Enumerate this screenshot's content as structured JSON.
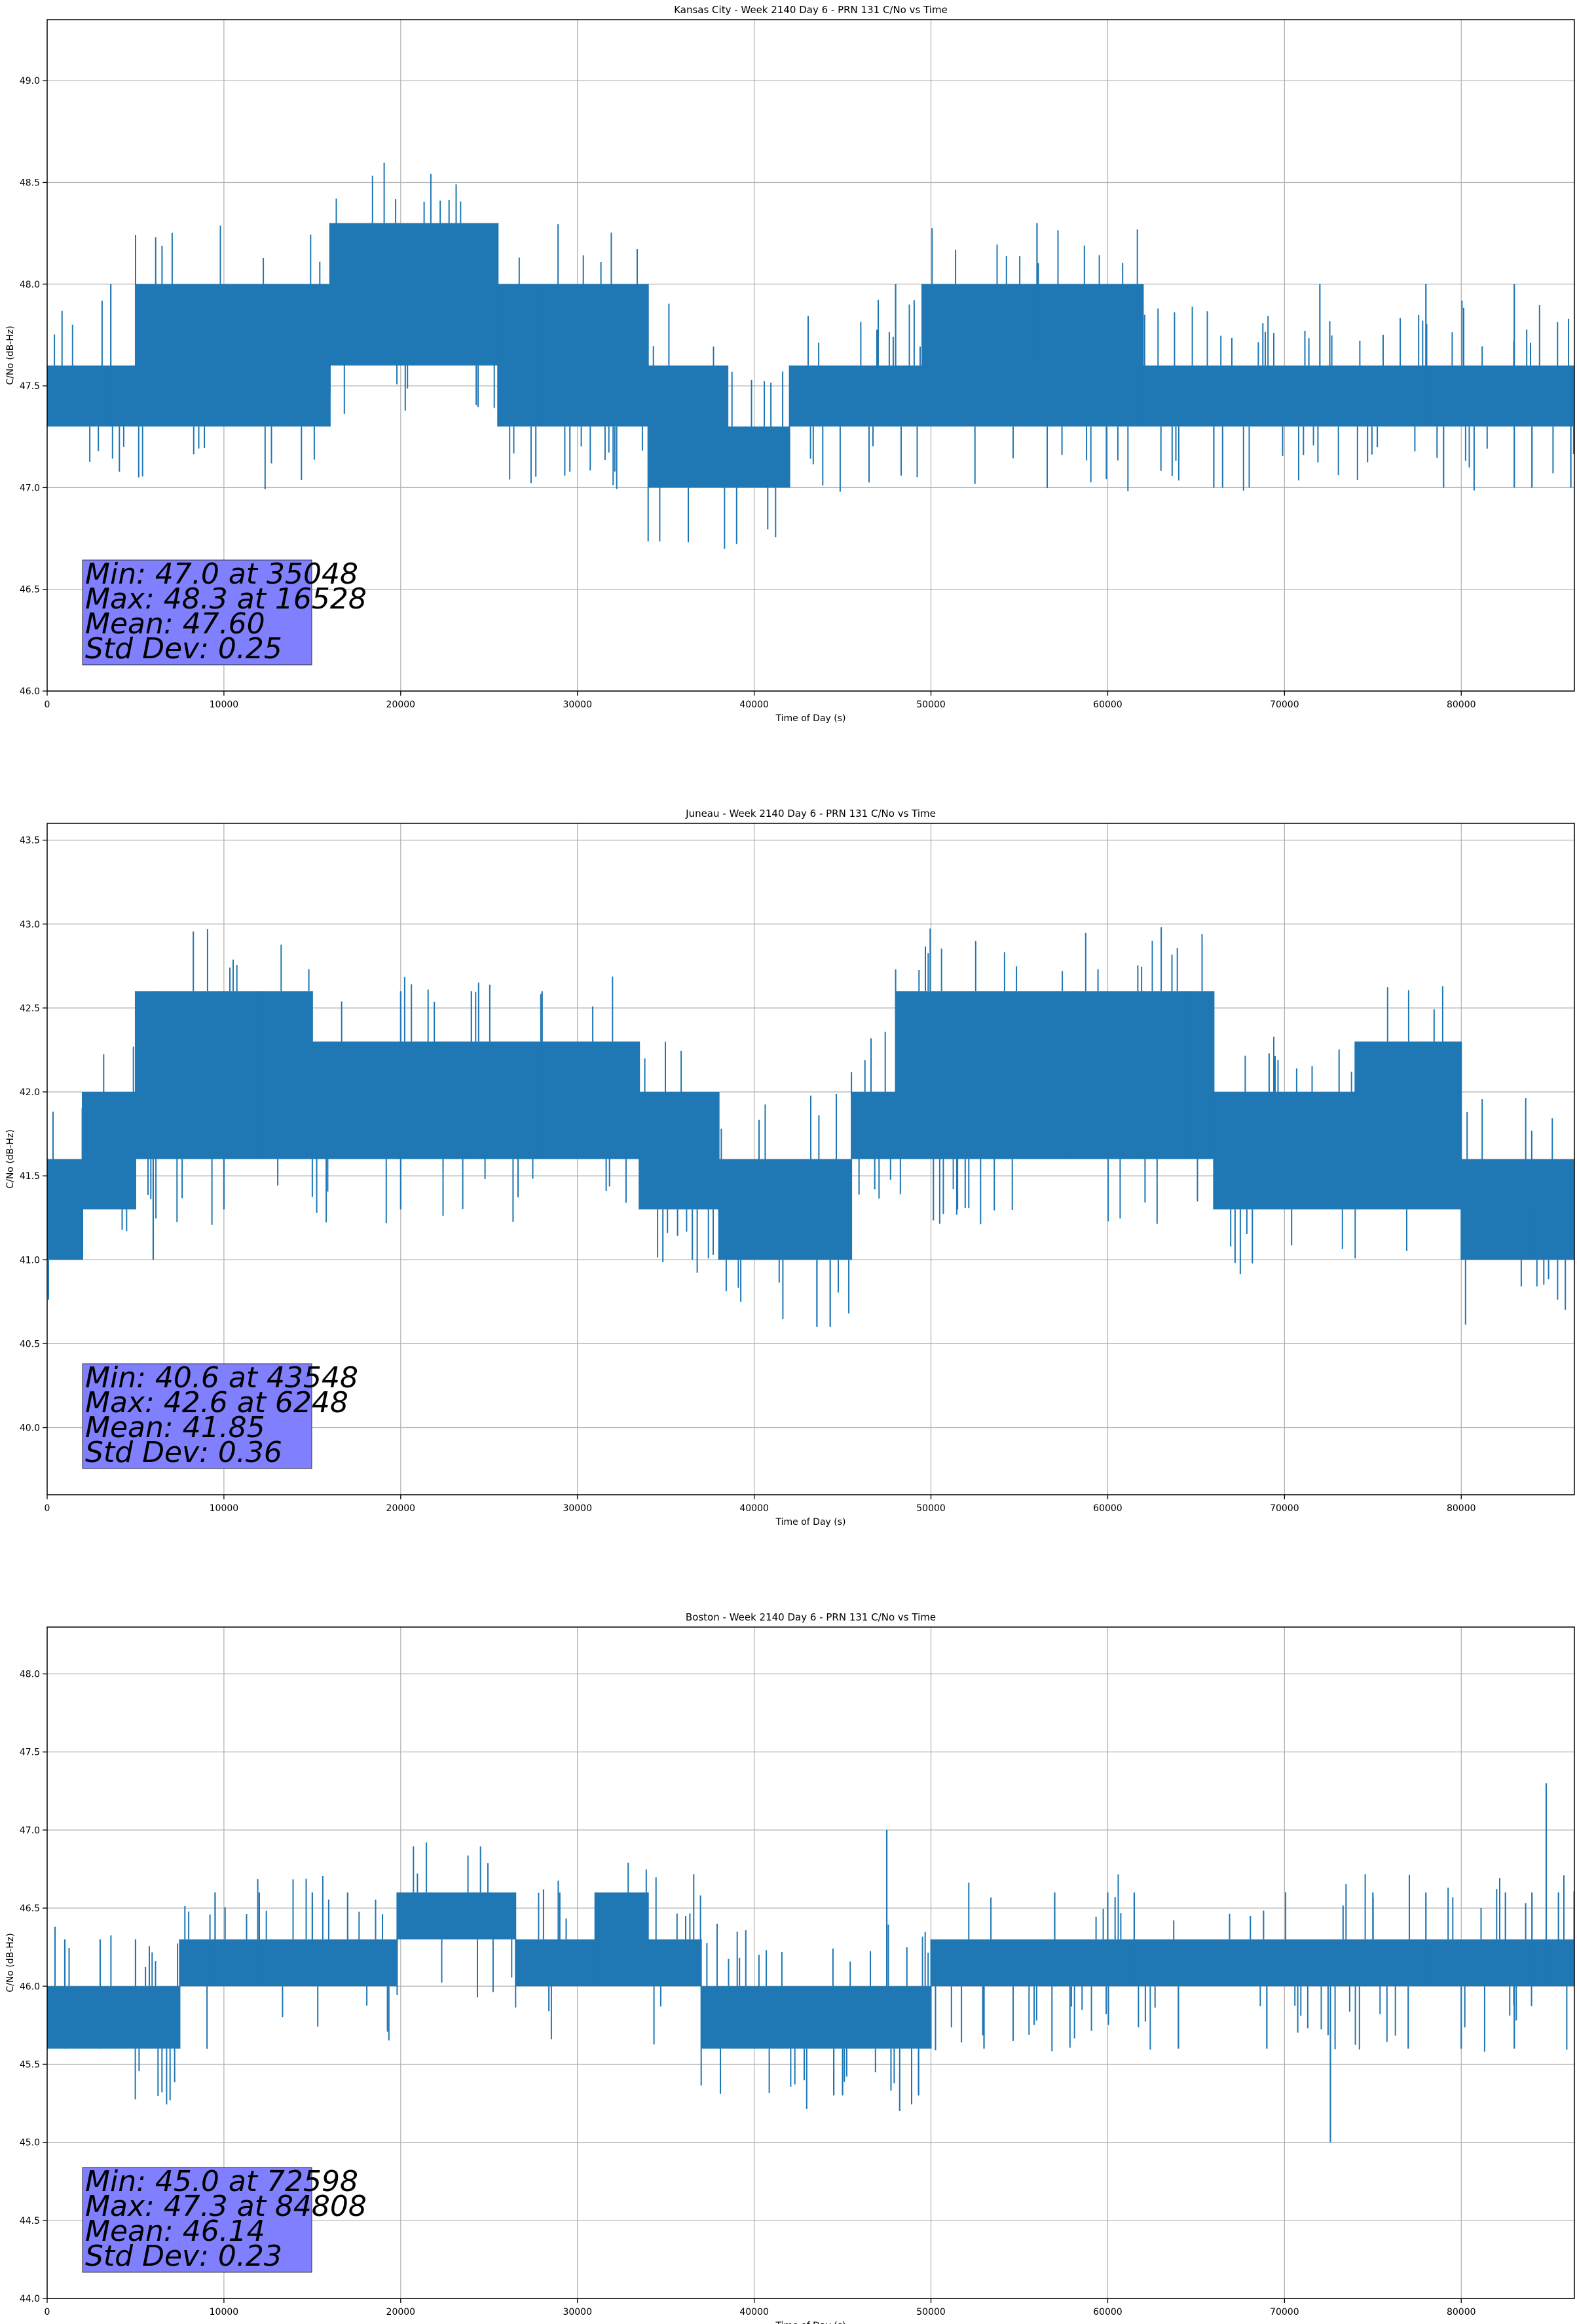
{
  "chart_data": [
    {
      "type": "line",
      "title": "Kansas City - Week 2140 Day 6 - PRN 131 C/No vs Time",
      "xlabel": "Time of Day (s)",
      "ylabel": "C/No (dB-Hz)",
      "xlim": [
        0,
        86400
      ],
      "ylim": [
        46.0,
        49.3
      ],
      "xticks": [
        0,
        10000,
        20000,
        30000,
        40000,
        50000,
        60000,
        70000,
        80000
      ],
      "xtick_labels": [
        "0",
        "10000",
        "20000",
        "30000",
        "40000",
        "50000",
        "60000",
        "70000",
        "80000"
      ],
      "yticks": [
        46.0,
        46.5,
        47.0,
        47.5,
        48.0,
        48.5,
        49.0
      ],
      "ytick_labels": [
        "46.0",
        "46.5",
        "47.0",
        "47.5",
        "48.0",
        "48.5",
        "49.0"
      ],
      "grid": true,
      "line_color": "#1f77b4",
      "series": [
        {
          "segments": [
            {
              "x": [
                0,
                5000
              ],
              "low": 47.3,
              "high": 47.6
            },
            {
              "x": [
                5000,
                16000
              ],
              "low": 47.3,
              "high": 48.0
            },
            {
              "x": [
                16000,
                25500
              ],
              "low": 47.6,
              "high": 48.3
            },
            {
              "x": [
                25500,
                34000
              ],
              "low": 47.3,
              "high": 48.0
            },
            {
              "x": [
                34000,
                38500
              ],
              "low": 47.0,
              "high": 47.6
            },
            {
              "x": [
                38500,
                42000
              ],
              "low": 47.0,
              "high": 47.3
            },
            {
              "x": [
                42000,
                49500
              ],
              "low": 47.3,
              "high": 47.6
            },
            {
              "x": [
                49500,
                62000
              ],
              "low": 47.3,
              "high": 48.0
            },
            {
              "x": [
                62000,
                86400
              ],
              "low": 47.3,
              "high": 47.6
            }
          ],
          "excursions": [
            {
              "x": [
                3600,
                9000,
                14000,
                28000,
                48000,
                56000,
                72000,
                78000,
                83000
              ],
              "high": [
                48.0,
                48.0,
                48.0,
                48.0,
                48.0,
                48.3,
                48.0,
                48.0,
                48.0
              ],
              "low": [
                47.3,
                47.3,
                47.3,
                47.3,
                47.3,
                47.6,
                47.3,
                47.3,
                47.0
              ]
            },
            {
              "x": [
                35048,
                39500,
                41000,
                66000,
                66500,
                79000,
                84000,
                86200
              ],
              "high": [
                47.6,
                47.3,
                47.3,
                47.3,
                47.3,
                47.3,
                47.3,
                47.6
              ],
              "low": [
                47.0,
                47.0,
                47.0,
                47.0,
                47.0,
                47.0,
                47.0,
                47.0
              ]
            }
          ]
        }
      ],
      "stats": {
        "min": "Min: 47.0 at 35048",
        "max": "Max: 48.3 at 16528",
        "mean": "Mean: 47.60",
        "std": "Std Dev: 0.25"
      },
      "stats_box_color": "#8080ff"
    },
    {
      "type": "line",
      "title": "Juneau - Week 2140 Day 6 - PRN 131 C/No vs Time",
      "xlabel": "Time of Day (s)",
      "ylabel": "C/No (dB-Hz)",
      "xlim": [
        0,
        86400
      ],
      "ylim": [
        39.6,
        43.6
      ],
      "xticks": [
        0,
        10000,
        20000,
        30000,
        40000,
        50000,
        60000,
        70000,
        80000
      ],
      "xtick_labels": [
        "0",
        "10000",
        "20000",
        "30000",
        "40000",
        "50000",
        "60000",
        "70000",
        "80000"
      ],
      "yticks": [
        40.0,
        40.5,
        41.0,
        41.5,
        42.0,
        42.5,
        43.0,
        43.5
      ],
      "ytick_labels": [
        "40.0",
        "40.5",
        "41.0",
        "41.5",
        "42.0",
        "42.5",
        "43.0",
        "43.5"
      ],
      "grid": true,
      "line_color": "#1f77b4",
      "series": [
        {
          "segments": [
            {
              "x": [
                0,
                2000
              ],
              "low": 41.0,
              "high": 41.6
            },
            {
              "x": [
                2000,
                5000
              ],
              "low": 41.3,
              "high": 42.0
            },
            {
              "x": [
                5000,
                15000
              ],
              "low": 41.6,
              "high": 42.6
            },
            {
              "x": [
                15000,
                30000
              ],
              "low": 41.6,
              "high": 42.3
            },
            {
              "x": [
                30000,
                33500
              ],
              "low": 41.6,
              "high": 42.3
            },
            {
              "x": [
                33500,
                38000
              ],
              "low": 41.3,
              "high": 42.0
            },
            {
              "x": [
                38000,
                45500
              ],
              "low": 41.0,
              "high": 41.6
            },
            {
              "x": [
                45500,
                48000
              ],
              "low": 41.6,
              "high": 42.0
            },
            {
              "x": [
                48000,
                66000
              ],
              "low": 41.6,
              "high": 42.6
            },
            {
              "x": [
                66000,
                74000
              ],
              "low": 41.3,
              "high": 42.0
            },
            {
              "x": [
                74000,
                80000
              ],
              "low": 41.3,
              "high": 42.3
            },
            {
              "x": [
                80000,
                86400
              ],
              "low": 41.0,
              "high": 41.6
            }
          ],
          "excursions": [
            {
              "x": [
                6248,
                10000,
                12000,
                20000,
                24000,
                28000,
                58000,
                62000,
                64500
              ],
              "high": [
                42.6,
                42.6,
                42.6,
                42.6,
                42.6,
                42.6,
                42.6,
                42.6,
                42.6
              ],
              "low": [
                41.6,
                41.3,
                41.6,
                41.3,
                41.6,
                41.6,
                41.6,
                41.6,
                41.6
              ]
            },
            {
              "x": [
                43548,
                44300
              ],
              "high": [
                41.3,
                41.0
              ],
              "low": [
                40.6,
                40.6
              ]
            },
            {
              "x": [
                1000,
                6000,
                36500,
                41000,
                51500,
                84000,
                85500
              ],
              "high": [
                41.6,
                41.6,
                41.3,
                41.3,
                41.6,
                41.3,
                41.3
              ],
              "low": [
                41.0,
                41.0,
                41.0,
                41.0,
                41.3,
                41.0,
                41.0
              ]
            }
          ]
        }
      ],
      "stats": {
        "min": "Min: 40.6 at 43548",
        "max": "Max: 42.6 at 6248",
        "mean": "Mean: 41.85",
        "std": "Std Dev: 0.36"
      },
      "stats_box_color": "#8080ff"
    },
    {
      "type": "line",
      "title": "Boston - Week 2140 Day 6 - PRN 131 C/No vs Time",
      "xlabel": "Time of Day (s)",
      "ylabel": "C/No (dB-Hz)",
      "xlim": [
        0,
        86400
      ],
      "ylim": [
        44.0,
        48.3
      ],
      "xticks": [
        0,
        10000,
        20000,
        30000,
        40000,
        50000,
        60000,
        70000,
        80000
      ],
      "xtick_labels": [
        "0",
        "10000",
        "20000",
        "30000",
        "40000",
        "50000",
        "60000",
        "70000",
        "80000"
      ],
      "yticks": [
        44.0,
        44.5,
        45.0,
        45.5,
        46.0,
        46.5,
        47.0,
        47.5,
        48.0
      ],
      "ytick_labels": [
        "44.0",
        "44.5",
        "45.0",
        "45.5",
        "46.0",
        "46.5",
        "47.0",
        "47.5",
        "48.0"
      ],
      "grid": true,
      "line_color": "#1f77b4",
      "series": [
        {
          "segments": [
            {
              "x": [
                0,
                7500
              ],
              "low": 45.6,
              "high": 46.0
            },
            {
              "x": [
                7500,
                19800
              ],
              "low": 46.0,
              "high": 46.3
            },
            {
              "x": [
                19800,
                26500
              ],
              "low": 46.3,
              "high": 46.6
            },
            {
              "x": [
                26500,
                31000
              ],
              "low": 46.0,
              "high": 46.3
            },
            {
              "x": [
                31000,
                34000
              ],
              "low": 46.0,
              "high": 46.6
            },
            {
              "x": [
                34000,
                37000
              ],
              "low": 46.0,
              "high": 46.3
            },
            {
              "x": [
                37000,
                50000
              ],
              "low": 45.6,
              "high": 46.0
            },
            {
              "x": [
                50000,
                86400
              ],
              "low": 46.0,
              "high": 46.3
            }
          ],
          "excursions": [
            {
              "x": [
                9500,
                12000,
                15000,
                17000,
                29000,
                57000,
                60000,
                61500,
                75000,
                78000,
                82500,
                84000,
                85500
              ],
              "high": [
                46.6,
                46.6,
                46.6,
                46.6,
                46.6,
                46.6,
                46.6,
                46.6,
                46.6,
                46.6,
                46.6,
                46.6,
                46.6
              ],
              "low": [
                46.0,
                46.0,
                46.0,
                46.0,
                46.0,
                46.0,
                46.0,
                46.0,
                46.0,
                46.0,
                46.0,
                46.0,
                46.0
              ]
            },
            {
              "x": [
                47500
              ],
              "high": [
                47.0
              ],
              "low": [
                46.0
              ]
            },
            {
              "x": [
                84808
              ],
              "high": [
                47.3
              ],
              "low": [
                46.0
              ]
            },
            {
              "x": [
                72598
              ],
              "high": [
                46.0
              ],
              "low": [
                45.0
              ]
            },
            {
              "x": [
                44500,
                45000,
                49300
              ],
              "high": [
                45.6,
                45.6,
                45.6
              ],
              "low": [
                45.3,
                45.3,
                45.3
              ]
            },
            {
              "x": [
                1000,
                3000,
                5000,
                53000,
                64000,
                69000,
                77000,
                80000,
                83000
              ],
              "high": [
                46.3,
                46.3,
                46.3,
                46.0,
                46.0,
                46.0,
                46.0,
                46.0,
                46.0
              ],
              "low": [
                45.6,
                45.6,
                45.6,
                45.6,
                45.6,
                45.6,
                45.6,
                45.6,
                45.6
              ]
            }
          ]
        }
      ],
      "stats": {
        "min": "Min: 45.0 at 72598",
        "max": "Max: 47.3 at 84808",
        "mean": "Mean: 46.14",
        "std": "Std Dev: 0.23"
      },
      "stats_box_color": "#8080ff"
    }
  ]
}
